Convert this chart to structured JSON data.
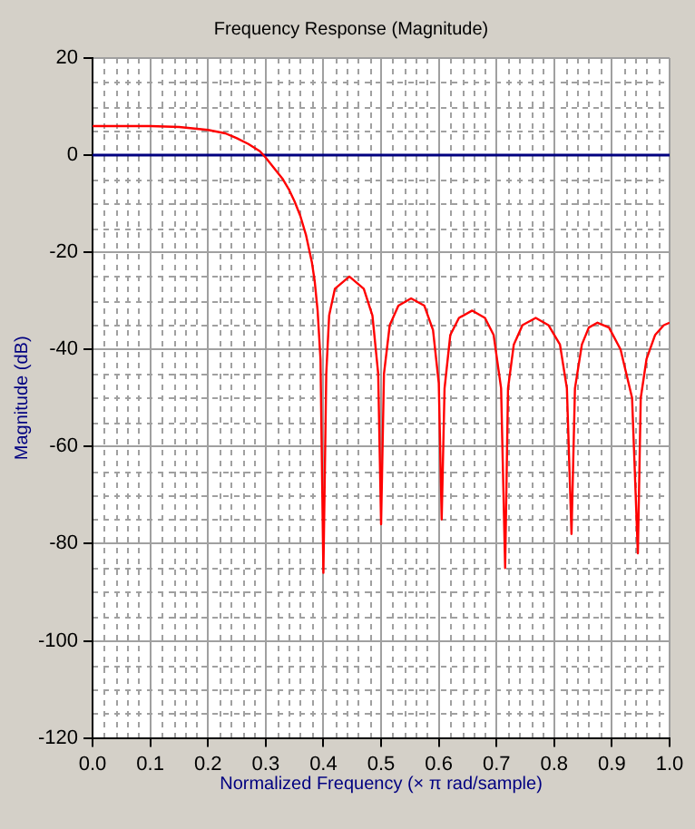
{
  "chart_data": {
    "type": "line",
    "title": "Frequency Response (Magnitude)",
    "xlabel": "Normalized Frequency (× π rad/sample)",
    "ylabel": "Magnitude (dB)",
    "series": [
      {
        "color": "#ff0000",
        "x": [
          0,
          0.05,
          0.1,
          0.15,
          0.2,
          0.23,
          0.25,
          0.27,
          0.29,
          0.3,
          0.31,
          0.32,
          0.33,
          0.34,
          0.35,
          0.36,
          0.37,
          0.38,
          0.385,
          0.39,
          0.395,
          0.4,
          0.405,
          0.41,
          0.42,
          0.445,
          0.47,
          0.485,
          0.495,
          0.5,
          0.505,
          0.515,
          0.53,
          0.552,
          0.575,
          0.59,
          0.6,
          0.605,
          0.61,
          0.62,
          0.635,
          0.658,
          0.68,
          0.695,
          0.708,
          0.715,
          0.72,
          0.73,
          0.745,
          0.768,
          0.79,
          0.81,
          0.822,
          0.83,
          0.836,
          0.848,
          0.86,
          0.875,
          0.895,
          0.915,
          0.935,
          0.945,
          0.95,
          0.96,
          0.975,
          0.99,
          1.0
        ],
        "values": [
          6,
          6,
          6,
          5.8,
          5.2,
          4.5,
          3.5,
          2.3,
          0.8,
          -0.5,
          -2,
          -3.5,
          -5,
          -7,
          -9.5,
          -12.5,
          -16.5,
          -22,
          -26,
          -32,
          -42,
          -86,
          -45,
          -33,
          -27.5,
          -25,
          -27.5,
          -33,
          -45,
          -76,
          -45,
          -35,
          -31,
          -29.5,
          -31,
          -36,
          -47,
          -75,
          -48,
          -37,
          -33.5,
          -32,
          -33.5,
          -37,
          -48,
          -85,
          -48,
          -39,
          -35,
          -33.5,
          -35,
          -39,
          -48,
          -78,
          -48,
          -39,
          -35.5,
          -34.5,
          -35.5,
          -40,
          -50,
          -82,
          -50,
          -42,
          -37,
          -35,
          -34.5
        ]
      }
    ],
    "xlim": [
      0,
      1
    ],
    "xticks": [
      {
        "value": 0,
        "label": "0.0"
      },
      {
        "value": 0.1,
        "label": "0.1"
      },
      {
        "value": 0.2,
        "label": "0.2"
      },
      {
        "value": 0.3,
        "label": "0.3"
      },
      {
        "value": 0.4,
        "label": "0.4"
      },
      {
        "value": 0.5,
        "label": "0.5"
      },
      {
        "value": 0.6,
        "label": "0.6"
      },
      {
        "value": 0.7,
        "label": "0.7"
      },
      {
        "value": 0.8,
        "label": "0.8"
      },
      {
        "value": 0.9,
        "label": "0.9"
      },
      {
        "value": 1,
        "label": "1.0"
      }
    ],
    "ylim": [
      -120,
      20
    ],
    "yticks": [
      -120,
      -100,
      -80,
      -60,
      -40,
      -20,
      0,
      20
    ],
    "ref_lines": [
      {
        "axis": "y",
        "value": 0,
        "color": "#000080"
      }
    ],
    "grid": true,
    "legend": false,
    "marker": "none",
    "line_style": "solid"
  }
}
